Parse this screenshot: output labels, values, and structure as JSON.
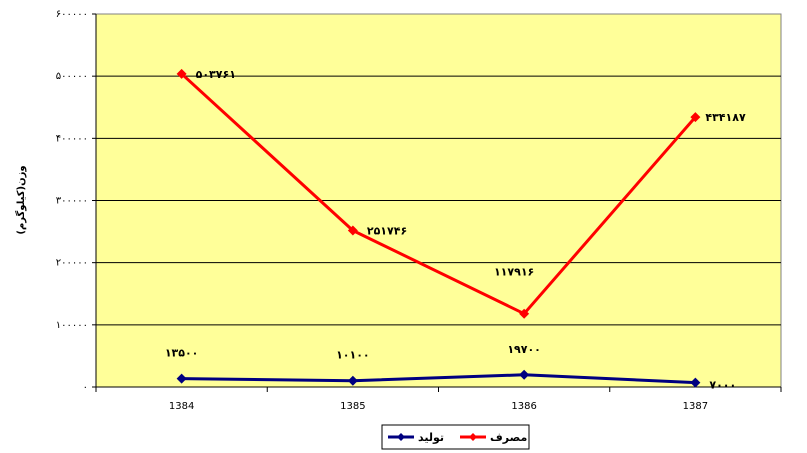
{
  "chart_data": {
    "type": "line",
    "categories": [
      "1384",
      "1385",
      "1386",
      "1387"
    ],
    "series": [
      {
        "name": "مصرف",
        "color": "#ff0000",
        "marker": "diamond",
        "values": [
          503761,
          251746,
          117916,
          434187
        ],
        "labels": [
          "۵۰۳۷۶۱",
          "۲۵۱۷۴۶",
          "۱۱۷۹۱۶",
          "۴۳۴۱۸۷"
        ]
      },
      {
        "name": "تولید",
        "color": "#000080",
        "marker": "diamond",
        "values": [
          13500,
          10100,
          19700,
          7000
        ],
        "labels": [
          "۱۳۵۰۰",
          "۱۰۱۰۰",
          "۱۹۷۰۰",
          "۷۰۰۰"
        ]
      }
    ],
    "ylabel": "وزن(کیلوگرم)",
    "ylim": [
      0,
      600000
    ],
    "yticks": [
      {
        "value": 0,
        "label": "۰"
      },
      {
        "value": 100000,
        "label": "۱۰۰۰۰۰"
      },
      {
        "value": 200000,
        "label": "۲۰۰۰۰۰"
      },
      {
        "value": 300000,
        "label": "۳۰۰۰۰۰"
      },
      {
        "value": 400000,
        "label": "۴۰۰۰۰۰"
      },
      {
        "value": 500000,
        "label": "۵۰۰۰۰۰"
      },
      {
        "value": 600000,
        "label": "۶۰۰۰۰۰"
      }
    ],
    "plot_background": "#ffff99",
    "grid": true,
    "legend_position": "bottom"
  }
}
